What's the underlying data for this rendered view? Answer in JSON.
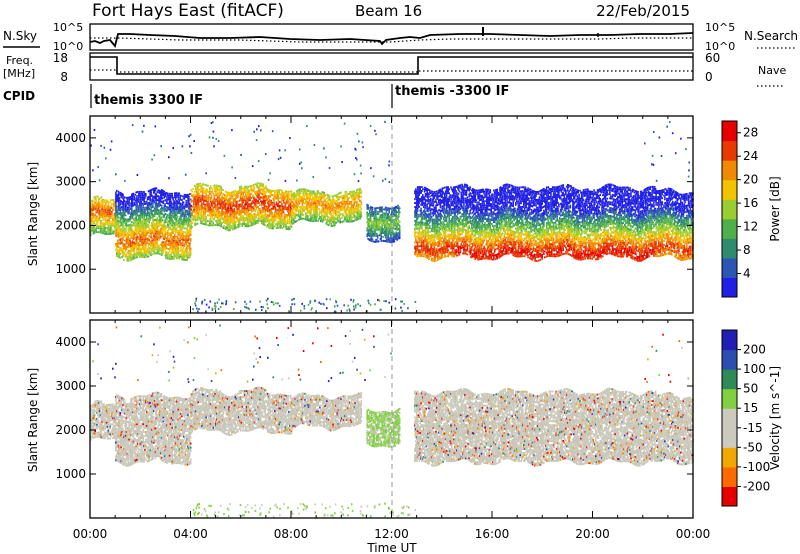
{
  "header": {
    "station": "Fort Hays East (fitACF)",
    "beam": "Beam 16",
    "date": "22/Feb/2015"
  },
  "summary": {
    "nsky_label": "N.Sky",
    "nsearch_label": "N.Search",
    "noise_ticks": [
      "10^5",
      "10^0"
    ],
    "freq_label": "Freq.",
    "freq_unit": "[MHz]",
    "freq_ticks": [
      "18",
      "8"
    ],
    "nave_label": "Nave",
    "nave_ticks": [
      "60",
      "0"
    ],
    "cpid_label": "CPID",
    "cpid_segments": [
      {
        "label": "themis 3300 IF",
        "start_hour": 0
      },
      {
        "label": "themis -3300 IF",
        "start_hour": 12
      }
    ]
  },
  "colors": {
    "power_scale": [
      "#1f1fe6",
      "#2a56b4",
      "#2e8b6e",
      "#4fb04a",
      "#9acd32",
      "#f3c200",
      "#f08a00",
      "#e83a00",
      "#e60000"
    ],
    "velocity_scale": [
      "#e60000",
      "#ff6a00",
      "#f0a800",
      "#cccabc",
      "#cccabc",
      "#80d040",
      "#2e8b57",
      "#2a4fb0",
      "#1f1fb4"
    ],
    "ground_scatter": "#c8c6b8"
  },
  "chart_data": [
    {
      "type": "heatmap",
      "name": "power",
      "ylabel": "Slant Range [km]",
      "yticks": [
        "1000",
        "2000",
        "3000",
        "4000"
      ],
      "ylim": [
        0,
        4500
      ],
      "xlim": [
        0,
        24
      ],
      "colorbar_label": "Power [dB]",
      "colorbar_ticks": [
        "4",
        "8",
        "12",
        "16",
        "20",
        "24",
        "28"
      ],
      "colorbar_range": [
        0,
        30
      ],
      "bands": [
        {
          "start": 0.0,
          "end": 1.0,
          "lower": 1800,
          "upper": 2600,
          "peak": 2300,
          "peak_db": 24
        },
        {
          "start": 1.0,
          "end": 4.0,
          "lower": 1300,
          "upper": 2800,
          "peak": 1700,
          "peak_db": 24
        },
        {
          "start": 4.0,
          "end": 8.0,
          "lower": 2000,
          "upper": 2900,
          "peak": 2500,
          "peak_db": 26
        },
        {
          "start": 8.0,
          "end": 10.8,
          "lower": 2100,
          "upper": 2800,
          "peak": 2500,
          "peak_db": 22
        },
        {
          "start": 11.0,
          "end": 12.3,
          "lower": 1700,
          "upper": 2500,
          "peak": 2100,
          "peak_db": 14
        },
        {
          "start": 12.9,
          "end": 14.5,
          "lower": 1300,
          "upper": 2900,
          "peak": 1500,
          "peak_db": 26
        },
        {
          "start": 14.5,
          "end": 22.5,
          "lower": 1300,
          "upper": 2900,
          "peak": 1400,
          "peak_db": 28
        },
        {
          "start": 22.5,
          "end": 24.0,
          "lower": 1300,
          "upper": 2800,
          "peak": 1500,
          "peak_db": 26
        }
      ]
    },
    {
      "type": "heatmap",
      "name": "velocity",
      "xlabel": "Time UT",
      "ylabel": "Slant Range [km]",
      "yticks": [
        "1000",
        "2000",
        "3000",
        "4000"
      ],
      "xticks": [
        "00:00",
        "04:00",
        "08:00",
        "12:00",
        "16:00",
        "20:00",
        "00:00"
      ],
      "ylim": [
        0,
        4500
      ],
      "xlim": [
        0,
        24
      ],
      "colorbar_label": "Velocity [m s^-1]",
      "colorbar_ticks": [
        "200",
        "100",
        "50",
        "15",
        "-15",
        "-50",
        "-100",
        "-200"
      ],
      "bands": [
        {
          "start": 0.0,
          "end": 1.0,
          "lower": 1800,
          "upper": 2600
        },
        {
          "start": 1.0,
          "end": 4.0,
          "lower": 1300,
          "upper": 2800
        },
        {
          "start": 4.0,
          "end": 8.0,
          "lower": 2000,
          "upper": 2900
        },
        {
          "start": 8.0,
          "end": 10.8,
          "lower": 2100,
          "upper": 2800
        },
        {
          "start": 11.0,
          "end": 12.3,
          "lower": 1700,
          "upper": 2500
        },
        {
          "start": 12.9,
          "end": 14.5,
          "lower": 1300,
          "upper": 2900
        },
        {
          "start": 14.5,
          "end": 22.5,
          "lower": 1300,
          "upper": 2900
        },
        {
          "start": 22.5,
          "end": 24.0,
          "lower": 1300,
          "upper": 2800
        }
      ]
    }
  ]
}
